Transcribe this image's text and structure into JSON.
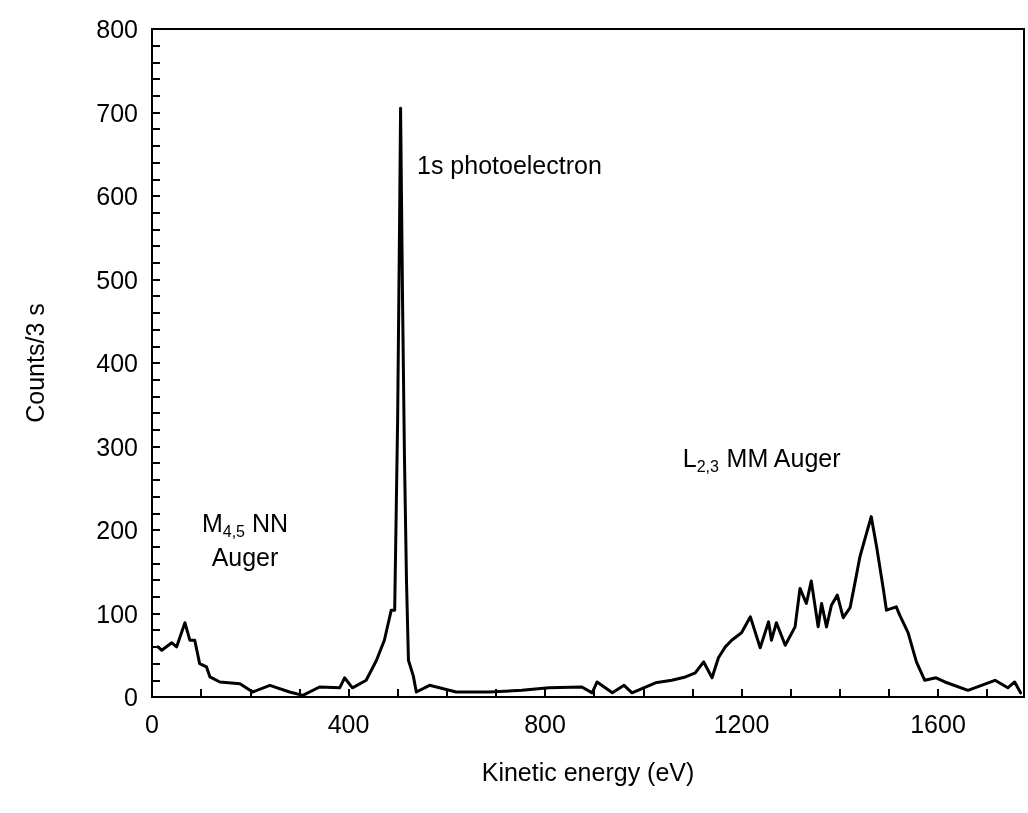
{
  "chart_data": {
    "type": "line",
    "xlabel": "Kinetic energy (eV)",
    "ylabel": "Counts/3 s",
    "xlim": [
      0,
      1775
    ],
    "ylim": [
      0,
      800
    ],
    "xticks": [
      0,
      {
        "value": 100,
        "label": null
      },
      {
        "value": 200,
        "label": null
      },
      {
        "value": 300,
        "label": null
      },
      400,
      {
        "value": 500,
        "label": null
      },
      {
        "value": 600,
        "label": null
      },
      {
        "value": 700,
        "label": null
      },
      800,
      {
        "value": 900,
        "label": null
      },
      {
        "value": 1000,
        "label": null
      },
      {
        "value": 1100,
        "label": null
      },
      1200,
      {
        "value": 1300,
        "label": null
      },
      {
        "value": 1400,
        "label": null
      },
      {
        "value": 1500,
        "label": null
      },
      1600,
      {
        "value": 1700,
        "label": null
      }
    ],
    "yticks": [
      0,
      {
        "value": 20,
        "label": null
      },
      {
        "value": 40,
        "label": null
      },
      {
        "value": 60,
        "label": null
      },
      {
        "value": 80,
        "label": null
      },
      100,
      {
        "value": 120,
        "label": null
      },
      {
        "value": 140,
        "label": null
      },
      {
        "value": 160,
        "label": null
      },
      {
        "value": 180,
        "label": null
      },
      200,
      {
        "value": 220,
        "label": null
      },
      {
        "value": 240,
        "label": null
      },
      {
        "value": 260,
        "label": null
      },
      {
        "value": 280,
        "label": null
      },
      300,
      {
        "value": 320,
        "label": null
      },
      {
        "value": 340,
        "label": null
      },
      {
        "value": 360,
        "label": null
      },
      {
        "value": 380,
        "label": null
      },
      400,
      {
        "value": 420,
        "label": null
      },
      {
        "value": 440,
        "label": null
      },
      {
        "value": 460,
        "label": null
      },
      {
        "value": 480,
        "label": null
      },
      500,
      {
        "value": 520,
        "label": null
      },
      {
        "value": 540,
        "label": null
      },
      {
        "value": 560,
        "label": null
      },
      {
        "value": 580,
        "label": null
      },
      600,
      {
        "value": 620,
        "label": null
      },
      {
        "value": 640,
        "label": null
      },
      {
        "value": 660,
        "label": null
      },
      {
        "value": 680,
        "label": null
      },
      700,
      {
        "value": 720,
        "label": null
      },
      {
        "value": 740,
        "label": null
      },
      {
        "value": 760,
        "label": null
      },
      {
        "value": 780,
        "label": null
      },
      800
    ],
    "grid": false,
    "marker": "none",
    "line_style": "solid",
    "annotations": [
      "1s photoelectron",
      "M$_{4,5}$ NN\nAuger",
      "L$_{2,3}$ MM Auger"
    ],
    "series": [
      {
        "color": "#000000",
        "x": [
          12,
          20,
          40,
          50,
          67,
          77,
          87,
          97,
          111,
          118,
          138,
          179,
          205,
          240,
          280,
          307,
          341,
          382,
          392,
          408,
          436,
          457,
          473,
          487,
          494,
          500,
          504,
          506,
          510,
          514,
          518,
          522,
          532,
          538,
          565,
          619,
          686,
          753,
          808,
          875,
          896,
          906,
          937,
          961,
          977,
          1025,
          1058,
          1086,
          1106,
          1123,
          1140,
          1153,
          1167,
          1180,
          1200,
          1218,
          1238,
          1255,
          1261,
          1271,
          1289,
          1309,
          1319,
          1332,
          1342,
          1356,
          1363,
          1373,
          1383,
          1395,
          1407,
          1421,
          1431,
          1441,
          1464,
          1475,
          1489,
          1495,
          1515,
          1522,
          1539,
          1556,
          1573,
          1596,
          1614,
          1661,
          1716,
          1742,
          1756,
          1768
        ],
        "values": [
          60,
          56,
          65,
          60,
          89,
          68,
          68,
          40,
          36,
          24,
          18,
          16,
          6,
          14,
          6,
          2,
          12,
          11,
          23,
          11,
          20,
          44,
          68,
          104,
          104,
          332,
          571,
          705,
          475,
          284,
          140,
          44,
          25,
          6,
          14,
          6,
          6,
          8,
          11,
          12,
          5,
          18,
          5,
          14,
          5,
          17,
          20,
          24,
          29,
          42,
          23,
          47,
          60,
          68,
          77,
          96,
          59,
          90,
          68,
          89,
          62,
          84,
          130,
          112,
          139,
          84,
          112,
          84,
          110,
          122,
          95,
          107,
          137,
          168,
          216,
          180,
          128,
          104,
          108,
          98,
          77,
          42,
          20,
          23,
          18,
          8,
          20,
          11,
          18,
          5
        ]
      }
    ]
  }
}
